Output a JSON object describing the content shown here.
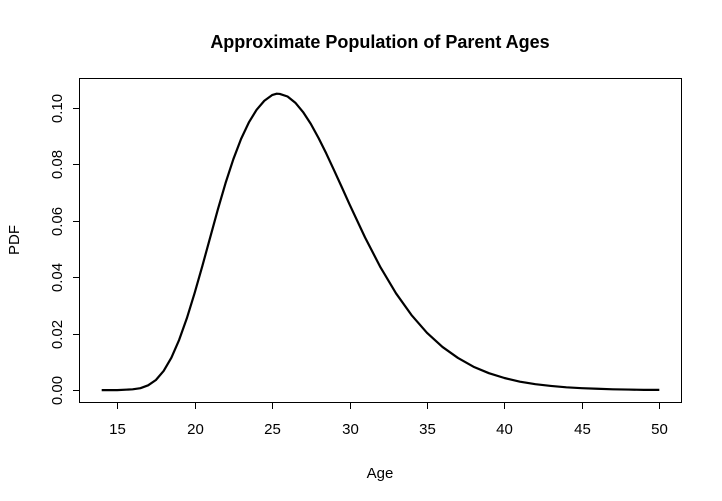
{
  "chart_data": {
    "type": "line",
    "title": "Approximate Population of Parent Ages",
    "xlabel": "Age",
    "ylabel": "PDF",
    "xlim": [
      12.6,
      51.4
    ],
    "ylim": [
      -0.0042,
      0.1102
    ],
    "x_ticks": [
      15,
      20,
      25,
      30,
      35,
      40,
      45,
      50
    ],
    "x_tick_labels": [
      "15",
      "20",
      "25",
      "30",
      "35",
      "40",
      "45",
      "50"
    ],
    "y_ticks": [
      0.0,
      0.02,
      0.04,
      0.06,
      0.08,
      0.1
    ],
    "y_tick_labels": [
      "0.00",
      "0.02",
      "0.04",
      "0.06",
      "0.08",
      "0.10"
    ],
    "grid": false,
    "legend": "none",
    "line_color": "#000000",
    "series": [
      {
        "x": [
          14,
          15,
          16,
          16.5,
          17,
          17.5,
          18,
          18.5,
          19,
          19.5,
          20,
          20.5,
          21,
          21.5,
          22,
          22.5,
          23,
          23.5,
          24,
          24.5,
          25,
          25.3,
          25.5,
          26,
          26.5,
          27,
          27.5,
          28,
          28.5,
          29,
          29.5,
          30,
          31,
          32,
          33,
          34,
          35,
          36,
          37,
          38,
          39,
          40,
          41,
          42,
          43,
          44,
          45,
          46,
          47,
          48,
          49,
          50
        ],
        "y": [
          0.0,
          0.0,
          0.0003,
          0.0007,
          0.0017,
          0.0036,
          0.0068,
          0.0115,
          0.0178,
          0.0255,
          0.0344,
          0.044,
          0.054,
          0.064,
          0.0734,
          0.0818,
          0.089,
          0.0948,
          0.0993,
          0.1025,
          0.1045,
          0.105,
          0.1049,
          0.104,
          0.1018,
          0.0985,
          0.0943,
          0.0893,
          0.0838,
          0.0779,
          0.0719,
          0.0658,
          0.0541,
          0.0435,
          0.0343,
          0.0266,
          0.0203,
          0.0153,
          0.0114,
          0.0083,
          0.006,
          0.0043,
          0.003,
          0.0021,
          0.0015,
          0.001,
          0.0007,
          0.0005,
          0.0003,
          0.0002,
          0.0001,
          0.0001
        ]
      }
    ]
  }
}
